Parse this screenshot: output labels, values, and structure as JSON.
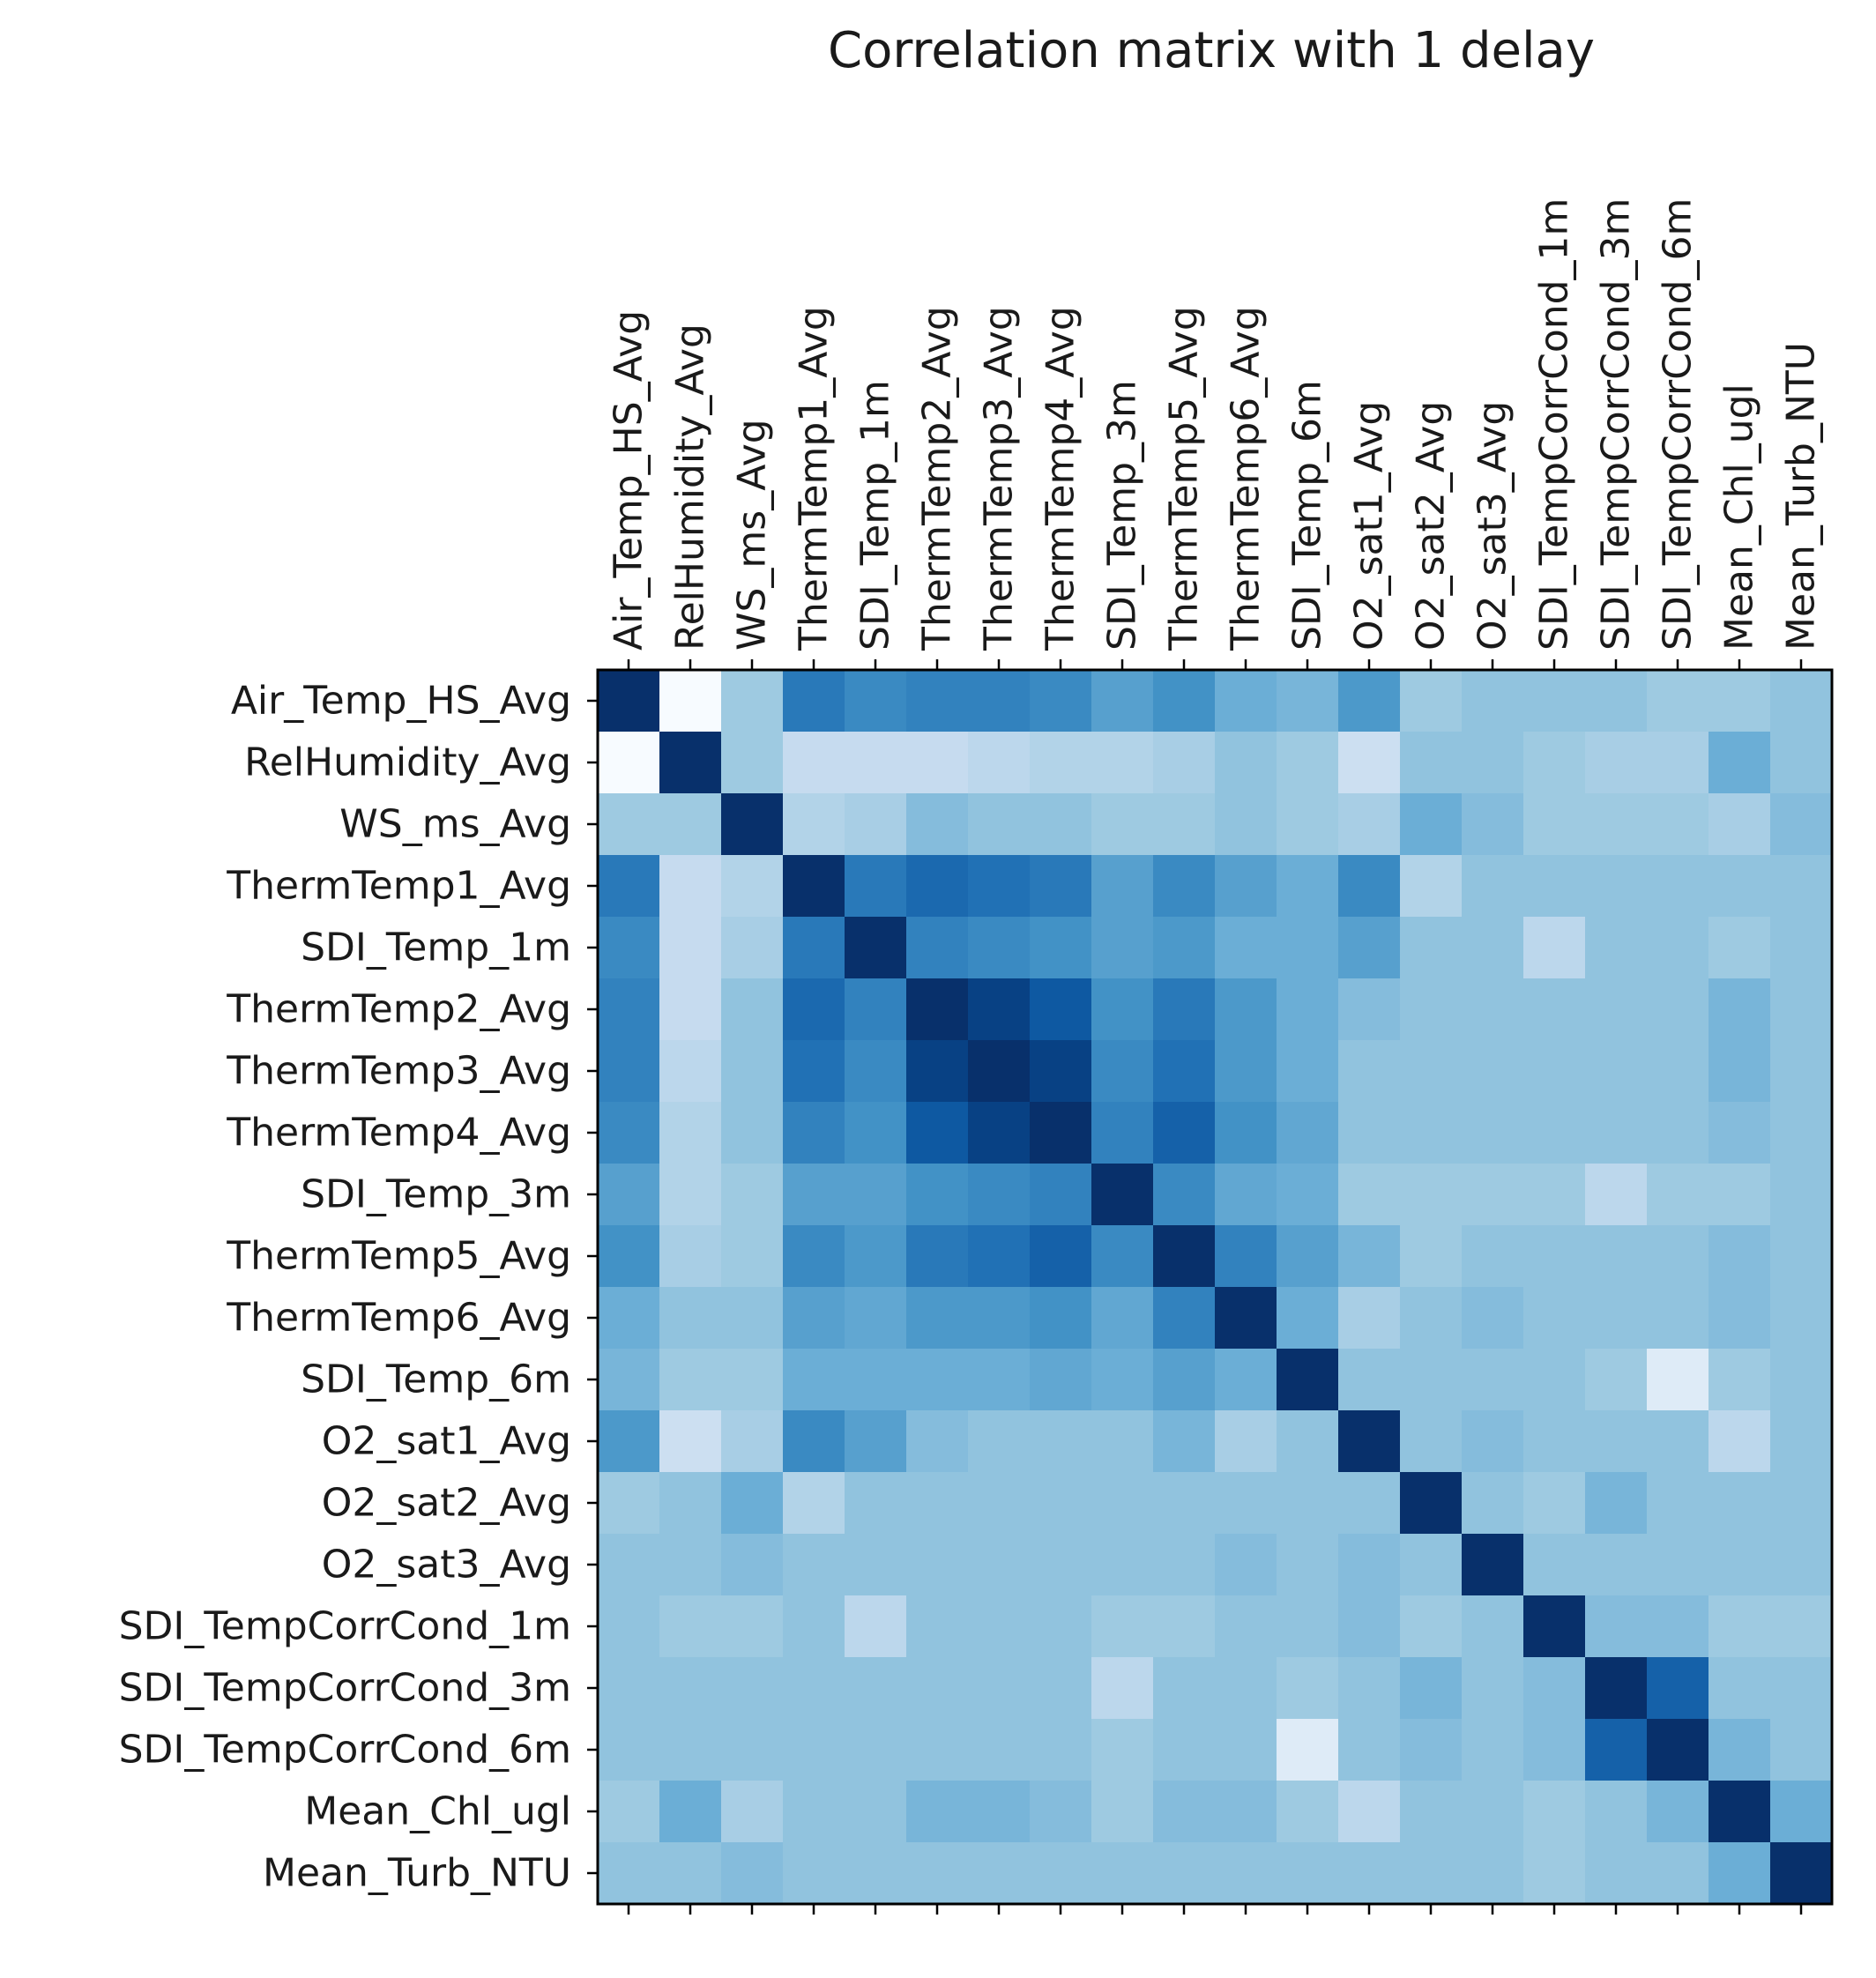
{
  "chart_data": {
    "type": "heatmap",
    "title": "Correlation matrix with 1 delay",
    "colormap": "Blues",
    "labels": [
      "Air_Temp_HS_Avg",
      "RelHumidity_Avg",
      "WS_ms_Avg",
      "ThermTemp1_Avg",
      "SDI_Temp_1m",
      "ThermTemp2_Avg",
      "ThermTemp3_Avg",
      "ThermTemp4_Avg",
      "SDI_Temp_3m",
      "ThermTemp5_Avg",
      "ThermTemp6_Avg",
      "SDI_Temp_6m",
      "O2_sat1_Avg",
      "O2_sat2_Avg",
      "O2_sat3_Avg",
      "SDI_TempCorrCond_1m",
      "SDI_TempCorrCond_3m",
      "SDI_TempCorrCond_6m",
      "Mean_Chl_ugl",
      "Mean_Turb_NTU"
    ],
    "x_tick_position": "top",
    "value_range": [
      -0.6,
      1.0
    ],
    "values": [
      [
        1.0,
        -0.6,
        0.0,
        0.55,
        0.45,
        0.5,
        0.5,
        0.45,
        0.3,
        0.4,
        0.2,
        0.15,
        0.35,
        0.0,
        0.05,
        0.05,
        0.05,
        0.0,
        0.0,
        0.05
      ],
      [
        -0.6,
        1.0,
        0.0,
        -0.2,
        -0.2,
        -0.2,
        -0.15,
        -0.1,
        -0.1,
        -0.05,
        0.05,
        0.0,
        -0.25,
        0.05,
        0.05,
        0.0,
        -0.05,
        -0.05,
        0.2,
        0.05
      ],
      [
        0.0,
        0.0,
        1.0,
        -0.1,
        -0.05,
        0.1,
        0.05,
        0.05,
        0.0,
        0.0,
        0.05,
        0.0,
        -0.05,
        0.2,
        0.1,
        0.0,
        0.0,
        0.0,
        -0.05,
        0.1
      ],
      [
        0.55,
        -0.2,
        -0.1,
        1.0,
        0.55,
        0.65,
        0.6,
        0.55,
        0.3,
        0.45,
        0.3,
        0.2,
        0.45,
        -0.1,
        0.05,
        0.05,
        0.05,
        0.05,
        0.05,
        0.05
      ],
      [
        0.45,
        -0.2,
        -0.05,
        0.55,
        1.0,
        0.5,
        0.45,
        0.4,
        0.3,
        0.35,
        0.2,
        0.2,
        0.3,
        0.05,
        0.05,
        -0.15,
        0.05,
        0.05,
        0.0,
        0.05
      ],
      [
        0.5,
        -0.2,
        0.05,
        0.65,
        0.5,
        1.0,
        0.9,
        0.75,
        0.4,
        0.55,
        0.35,
        0.2,
        0.1,
        0.05,
        0.05,
        0.05,
        0.05,
        0.05,
        0.15,
        0.05
      ],
      [
        0.5,
        -0.15,
        0.05,
        0.6,
        0.45,
        0.9,
        1.0,
        0.9,
        0.45,
        0.6,
        0.35,
        0.2,
        0.05,
        0.05,
        0.05,
        0.05,
        0.05,
        0.05,
        0.15,
        0.05
      ],
      [
        0.45,
        -0.1,
        0.05,
        0.5,
        0.4,
        0.75,
        0.9,
        1.0,
        0.5,
        0.7,
        0.4,
        0.25,
        0.05,
        0.05,
        0.05,
        0.05,
        0.05,
        0.05,
        0.1,
        0.05
      ],
      [
        0.3,
        -0.1,
        0.0,
        0.3,
        0.3,
        0.4,
        0.45,
        0.5,
        1.0,
        0.45,
        0.25,
        0.2,
        0.0,
        0.0,
        0.0,
        0.0,
        -0.15,
        0.0,
        0.0,
        0.05
      ],
      [
        0.4,
        -0.05,
        0.0,
        0.45,
        0.35,
        0.55,
        0.6,
        0.7,
        0.45,
        1.0,
        0.5,
        0.3,
        0.15,
        0.0,
        0.05,
        0.05,
        0.05,
        0.05,
        0.1,
        0.05
      ],
      [
        0.2,
        0.05,
        0.05,
        0.3,
        0.25,
        0.35,
        0.35,
        0.4,
        0.25,
        0.5,
        1.0,
        0.2,
        -0.05,
        0.05,
        0.1,
        0.05,
        0.05,
        0.05,
        0.1,
        0.05
      ],
      [
        0.15,
        0.0,
        0.0,
        0.2,
        0.2,
        0.2,
        0.2,
        0.25,
        0.2,
        0.3,
        0.2,
        1.0,
        0.05,
        0.05,
        0.05,
        0.05,
        0.0,
        -0.4,
        0.0,
        0.05
      ],
      [
        0.35,
        -0.25,
        -0.05,
        0.45,
        0.3,
        0.1,
        0.05,
        0.05,
        0.05,
        0.15,
        -0.05,
        0.05,
        1.0,
        0.05,
        0.1,
        0.05,
        0.05,
        0.05,
        -0.15,
        0.05
      ],
      [
        0.0,
        0.05,
        0.2,
        -0.1,
        0.05,
        0.05,
        0.05,
        0.05,
        0.05,
        0.05,
        0.05,
        0.05,
        0.05,
        1.0,
        0.05,
        0.0,
        0.15,
        0.05,
        0.05,
        0.05
      ],
      [
        0.05,
        0.05,
        0.1,
        0.05,
        0.05,
        0.05,
        0.05,
        0.05,
        0.05,
        0.05,
        0.1,
        0.05,
        0.1,
        0.05,
        1.0,
        0.05,
        0.05,
        0.05,
        0.05,
        0.05
      ],
      [
        0.05,
        0.0,
        0.0,
        0.05,
        -0.15,
        0.05,
        0.05,
        0.05,
        0.0,
        0.0,
        0.05,
        0.05,
        0.1,
        0.0,
        0.05,
        1.0,
        0.1,
        0.1,
        0.0,
        0.0
      ],
      [
        0.05,
        0.05,
        0.05,
        0.05,
        0.05,
        0.05,
        0.05,
        0.05,
        -0.15,
        0.05,
        0.05,
        0.0,
        0.05,
        0.15,
        0.05,
        0.1,
        1.0,
        0.7,
        0.05,
        0.05
      ],
      [
        0.05,
        0.05,
        0.05,
        0.05,
        0.05,
        0.05,
        0.05,
        0.05,
        0.0,
        0.05,
        0.05,
        -0.4,
        0.05,
        0.1,
        0.05,
        0.1,
        0.7,
        1.0,
        0.15,
        0.05
      ],
      [
        0.0,
        0.2,
        -0.05,
        0.05,
        0.05,
        0.15,
        0.15,
        0.1,
        0.0,
        0.1,
        0.1,
        0.0,
        -0.15,
        0.05,
        0.05,
        0.0,
        0.05,
        0.15,
        1.0,
        0.2
      ],
      [
        0.05,
        0.05,
        0.1,
        0.05,
        0.05,
        0.05,
        0.05,
        0.05,
        0.05,
        0.05,
        0.05,
        0.05,
        0.05,
        0.05,
        0.05,
        0.0,
        0.05,
        0.05,
        0.2,
        1.0
      ]
    ]
  }
}
